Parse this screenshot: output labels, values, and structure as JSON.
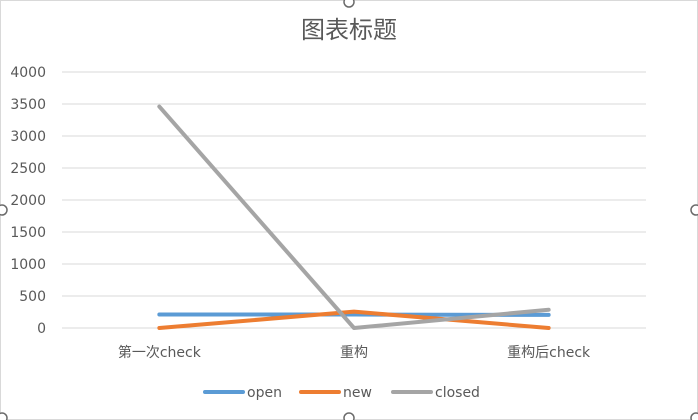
{
  "chart_data": {
    "type": "line",
    "title": "图表标题",
    "xlabel": "",
    "ylabel": "",
    "categories": [
      "第一次check",
      "重构",
      "重构后check"
    ],
    "y_ticks": [
      "0",
      "500",
      "1000",
      "1500",
      "2000",
      "2500",
      "3000",
      "3500",
      "4000"
    ],
    "ylim": [
      0,
      4000
    ],
    "grid": true,
    "legend_position": "bottom",
    "series": [
      {
        "name": "open",
        "color": "#5b9bd5",
        "values": [
          210,
          210,
          205
        ]
      },
      {
        "name": "new",
        "color": "#ed7d31",
        "values": [
          0,
          255,
          0
        ]
      },
      {
        "name": "closed",
        "color": "#a5a5a5",
        "values": [
          3460,
          0,
          285
        ]
      }
    ]
  }
}
